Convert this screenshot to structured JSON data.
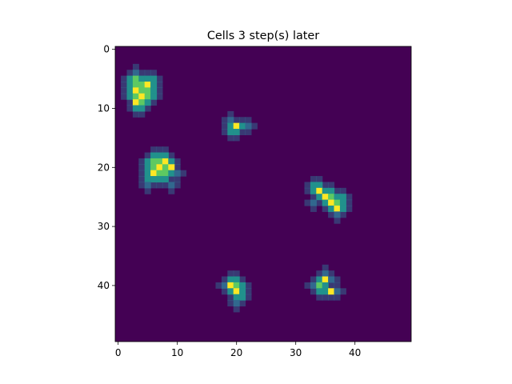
{
  "chart_data": {
    "type": "heatmap",
    "title": "Cells 3 step(s) later",
    "xlabel": "",
    "ylabel": "",
    "grid_size": [
      50,
      50
    ],
    "xlim": [
      -0.5,
      49.5
    ],
    "ylim": [
      49.5,
      -0.5
    ],
    "x_ticks": [
      0,
      10,
      20,
      30,
      40
    ],
    "y_ticks": [
      0,
      10,
      20,
      30,
      40
    ],
    "grid": false,
    "legend": "none",
    "colormap": "viridis",
    "colors": {
      "background": "#440154",
      "low": "#31688e",
      "mid": "#21918c",
      "high": "#5ec962",
      "peak": "#fde725"
    },
    "clusters": [
      {
        "cells": [
          [
            4,
            3
          ],
          [
            5,
            2
          ],
          [
            5,
            3
          ],
          [
            5,
            4
          ],
          [
            5,
            5
          ],
          [
            5,
            6
          ],
          [
            6,
            2
          ],
          [
            6,
            3
          ],
          [
            6,
            4
          ],
          [
            6,
            5
          ],
          [
            6,
            6
          ],
          [
            7,
            2
          ],
          [
            7,
            3
          ],
          [
            7,
            4
          ],
          [
            7,
            5
          ],
          [
            7,
            6
          ],
          [
            8,
            2
          ],
          [
            8,
            3
          ],
          [
            8,
            4
          ],
          [
            8,
            5
          ],
          [
            8,
            6
          ],
          [
            9,
            3
          ],
          [
            9,
            4
          ],
          [
            9,
            5
          ],
          [
            10,
            3
          ],
          [
            10,
            4
          ]
        ],
        "peak": [
          [
            7,
            3
          ],
          [
            8,
            4
          ],
          [
            6,
            5
          ],
          [
            9,
            3
          ]
        ]
      },
      {
        "cells": [
          [
            12,
            19
          ],
          [
            13,
            19
          ],
          [
            13,
            20
          ],
          [
            13,
            21
          ],
          [
            14,
            19
          ],
          [
            14,
            20
          ],
          [
            13,
            22
          ]
        ],
        "peak": [
          [
            13,
            20
          ]
        ]
      },
      {
        "cells": [
          [
            18,
            6
          ],
          [
            18,
            7
          ],
          [
            18,
            8
          ],
          [
            19,
            5
          ],
          [
            19,
            6
          ],
          [
            19,
            7
          ],
          [
            19,
            8
          ],
          [
            19,
            9
          ],
          [
            20,
            5
          ],
          [
            20,
            6
          ],
          [
            20,
            7
          ],
          [
            20,
            8
          ],
          [
            20,
            9
          ],
          [
            21,
            5
          ],
          [
            21,
            6
          ],
          [
            21,
            7
          ],
          [
            21,
            8
          ],
          [
            21,
            9
          ],
          [
            21,
            10
          ],
          [
            22,
            5
          ],
          [
            22,
            6
          ],
          [
            22,
            7
          ],
          [
            22,
            8
          ],
          [
            23,
            5
          ],
          [
            23,
            9
          ]
        ],
        "peak": [
          [
            19,
            8
          ],
          [
            20,
            7
          ],
          [
            21,
            6
          ],
          [
            20,
            9
          ]
        ]
      },
      {
        "cells": [
          [
            23,
            33
          ],
          [
            23,
            34
          ],
          [
            24,
            33
          ],
          [
            24,
            34
          ],
          [
            24,
            35
          ],
          [
            24,
            36
          ],
          [
            25,
            34
          ],
          [
            25,
            35
          ],
          [
            25,
            36
          ],
          [
            25,
            37
          ],
          [
            25,
            38
          ],
          [
            26,
            33
          ],
          [
            26,
            35
          ],
          [
            26,
            36
          ],
          [
            26,
            37
          ],
          [
            26,
            38
          ],
          [
            27,
            36
          ],
          [
            27,
            37
          ],
          [
            27,
            38
          ],
          [
            28,
            37
          ]
        ],
        "peak": [
          [
            24,
            34
          ],
          [
            26,
            36
          ],
          [
            27,
            37
          ],
          [
            25,
            35
          ]
        ]
      },
      {
        "cells": [
          [
            38,
            35
          ],
          [
            39,
            34
          ],
          [
            39,
            35
          ],
          [
            40,
            33
          ],
          [
            40,
            34
          ],
          [
            40,
            35
          ],
          [
            41,
            34
          ],
          [
            41,
            35
          ],
          [
            41,
            36
          ],
          [
            41,
            37
          ],
          [
            39,
            36
          ]
        ],
        "peak": [
          [
            39,
            35
          ],
          [
            41,
            36
          ]
        ]
      },
      {
        "cells": [
          [
            39,
            19
          ],
          [
            39,
            20
          ],
          [
            40,
            18
          ],
          [
            40,
            19
          ],
          [
            40,
            20
          ],
          [
            40,
            21
          ],
          [
            41,
            19
          ],
          [
            41,
            20
          ],
          [
            41,
            21
          ],
          [
            42,
            20
          ],
          [
            42,
            21
          ],
          [
            43,
            20
          ]
        ],
        "peak": [
          [
            40,
            19
          ],
          [
            41,
            20
          ]
        ]
      }
    ]
  }
}
